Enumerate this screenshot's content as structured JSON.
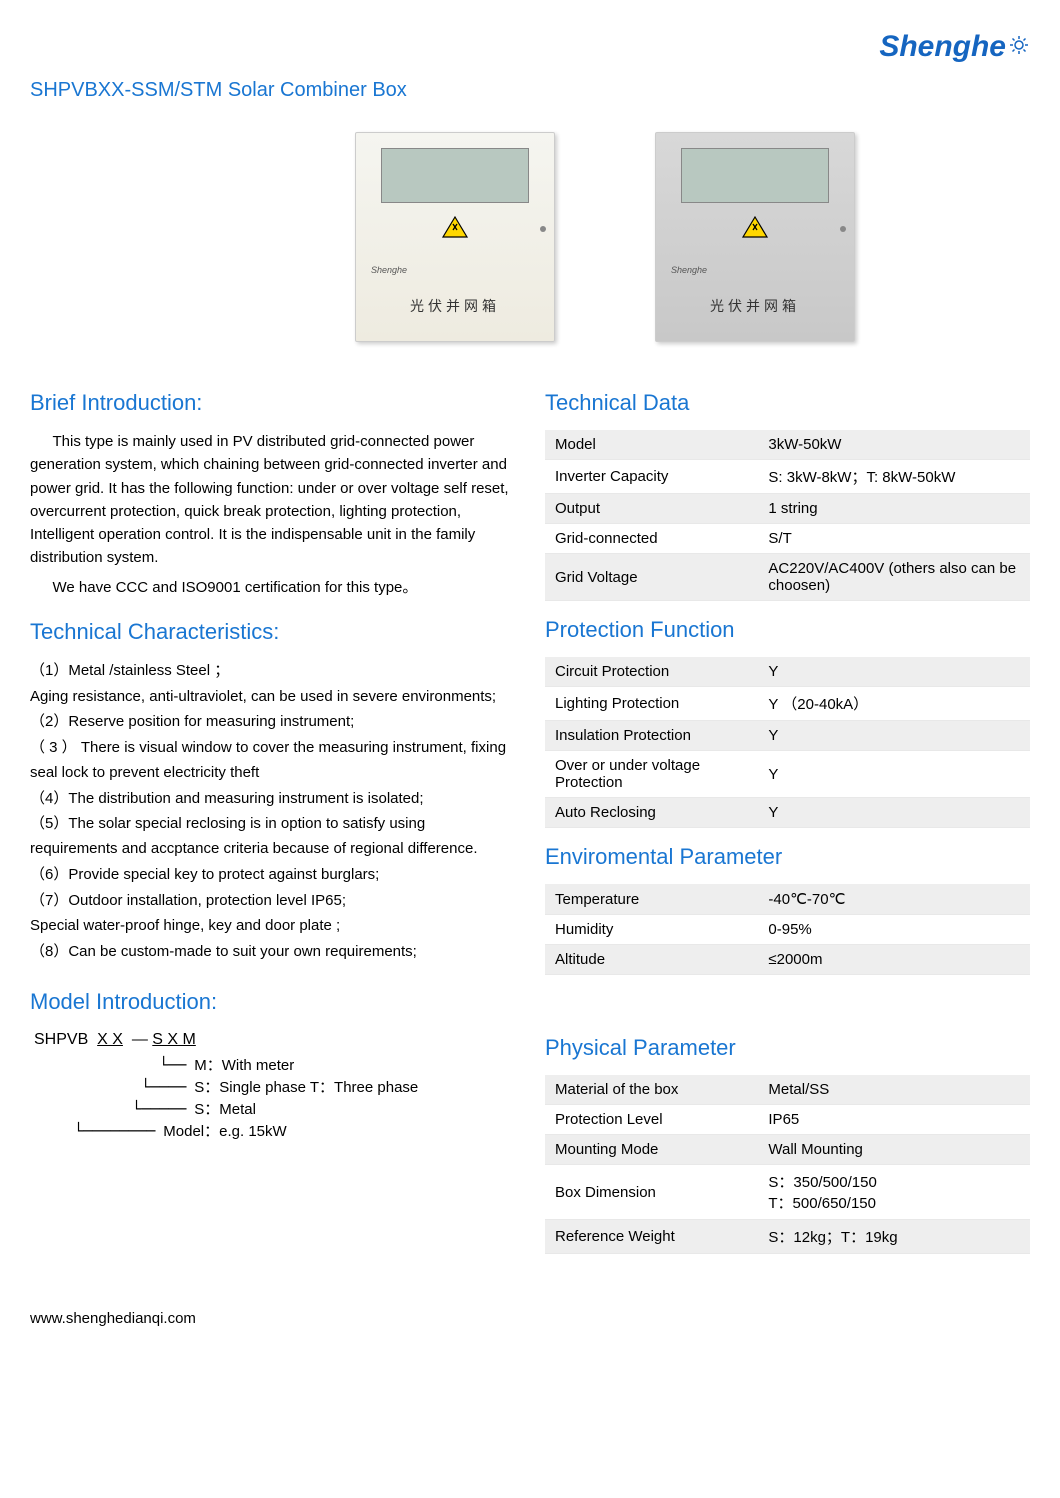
{
  "logo": {
    "text": "Shenghe"
  },
  "page_title": "SHPVBXX-SSM/STM  Solar Combiner Box",
  "product_box": {
    "chinese_label": "光伏并网箱",
    "brand": "Shenghe"
  },
  "brief_intro": {
    "heading": "Brief Introduction:",
    "p1": "This type is mainly used in PV distributed grid-connected power generation system, which chaining between grid-connected inverter and power grid. It has the following  function:   under or over voltage self reset, overcurrent protection, quick break protection, lighting protection, Intelligent operation control. It is the indispensable unit in the family distribution system.",
    "p2": "We have CCC and ISO9001 certification for this type。"
  },
  "tech_char": {
    "heading": "Technical Characteristics:",
    "items": [
      "（1）Metal /stainless Steel ；",
      "Aging resistance,   anti-ultraviolet, can be used in severe environments;",
      "（2）Reserve position for measuring instrument;",
      "（ 3 ） There  is  visual  window  to  cover  the  measuring instrument, fixing seal lock to prevent electricity theft",
      "（4）The distribution and measuring instrument is isolated;",
      "（5）The solar special reclosing is in option to satisfy using requirements and accptance criteria because of   regional difference.",
      "（6）Provide special key to protect against burglars;",
      "（7）Outdoor installation, protection level IP65;",
      "Special water-proof hinge, key and door plate ;",
      "（8）Can be custom-made to suit your own requirements;"
    ]
  },
  "model_intro": {
    "heading": "Model Introduction:",
    "code_parts": {
      "prefix": "SHPVB",
      "xx": "X X",
      "sep": "—",
      "sxm": "S X M"
    },
    "legend": [
      "M：With meter",
      "S：Single phase  T：Three phase",
      "S：Metal",
      "Model：e.g. 15kW"
    ]
  },
  "tech_data": {
    "heading": "Technical Data",
    "rows": [
      {
        "k": "Model",
        "v": "3kW-50kW"
      },
      {
        "k": "Inverter Capacity",
        "v": "S: 3kW-8kW；T: 8kW-50kW"
      },
      {
        "k": "Output",
        "v": "1 string"
      },
      {
        "k": "Grid-connected",
        "v": "S/T"
      },
      {
        "k": "Grid Voltage",
        "v": "AC220V/AC400V (others also can be choosen)"
      }
    ]
  },
  "protection": {
    "heading": "Protection Function",
    "rows": [
      {
        "k": "Circuit Protection",
        "v": "Y"
      },
      {
        "k": "Lighting Protection",
        "v": "Y （20-40kA）"
      },
      {
        "k": "Insulation Protection",
        "v": "Y"
      },
      {
        "k": "Over or under voltage Protection",
        "v": "Y"
      },
      {
        "k": "Auto Reclosing",
        "v": "Y"
      }
    ]
  },
  "env": {
    "heading": "Enviromental   Parameter",
    "rows": [
      {
        "k": "Temperature",
        "v": "-40℃-70℃"
      },
      {
        "k": "Humidity",
        "v": "0-95%"
      },
      {
        "k": "Altitude",
        "v": "≤2000m"
      }
    ]
  },
  "physical": {
    "heading": "Physical Parameter",
    "rows": [
      {
        "k": "Material of the box",
        "v": "Metal/SS"
      },
      {
        "k": "Protection Level",
        "v": "IP65"
      },
      {
        "k": "Mounting Mode",
        "v": "Wall Mounting"
      },
      {
        "k": "Box Dimension",
        "v": "S：350/500/150\nT：500/650/150"
      },
      {
        "k": "Reference Weight",
        "v": "S：12kg；T：19kg"
      }
    ]
  },
  "footer": "www.shenghedianqi.com",
  "colors": {
    "heading": "#1976d2",
    "logo": "#1565c0",
    "stripe": "#eeeeee",
    "border": "#e8e8e8"
  }
}
